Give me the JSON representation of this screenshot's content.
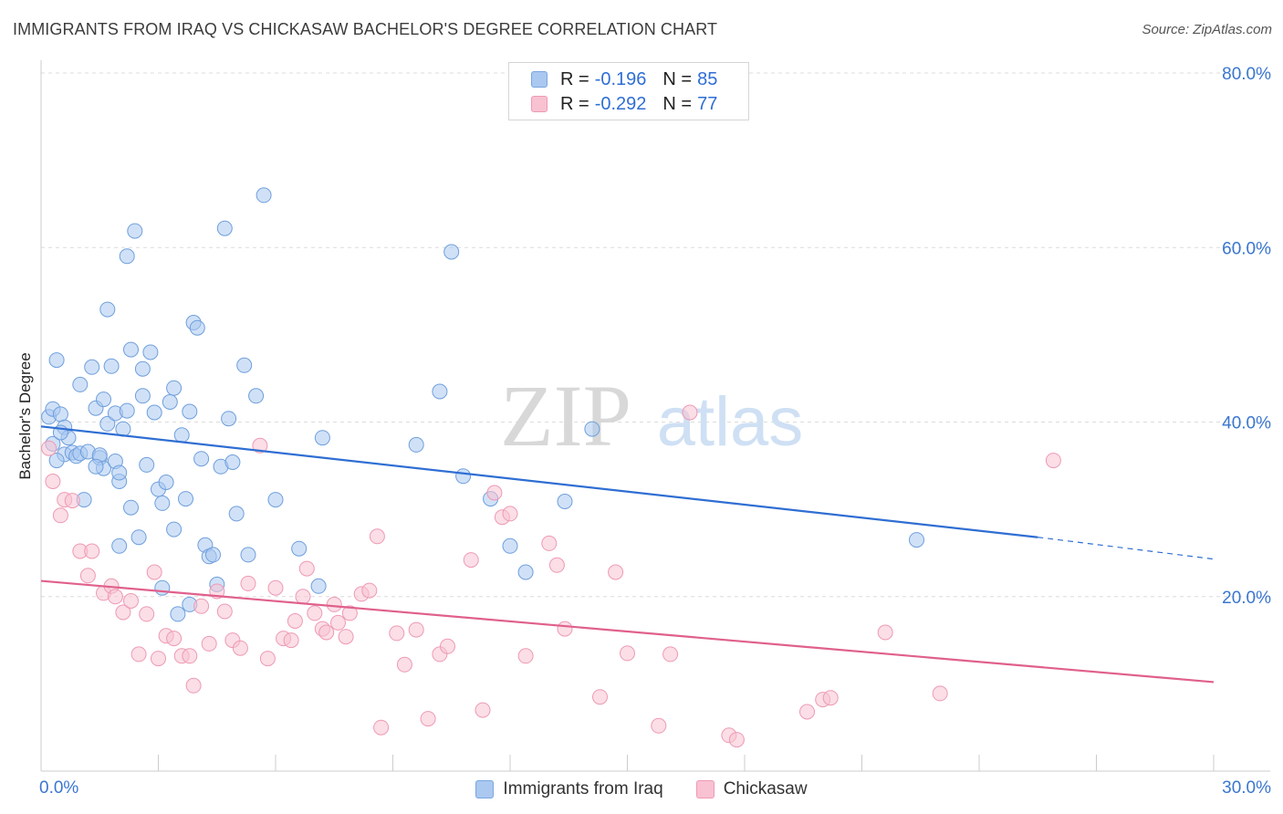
{
  "title": "IMMIGRANTS FROM IRAQ VS CHICKASAW BACHELOR'S DEGREE CORRELATION CHART",
  "source": "Source: ZipAtlas.com",
  "watermark": {
    "zip": "ZIP",
    "atlas": "atlas"
  },
  "legend": {
    "rows": [
      {
        "r_label": "R =",
        "r_value": "-0.196",
        "n_label": "N =",
        "n_value": "85",
        "color": "#aac8f0"
      },
      {
        "r_label": "R =",
        "r_value": "-0.292",
        "n_label": "N =",
        "n_value": "77",
        "color": "#f8c2d2"
      }
    ]
  },
  "chart_data": {
    "type": "scatter",
    "title": "IMMIGRANTS FROM IRAQ VS CHICKASAW BACHELOR'S DEGREE CORRELATION CHART",
    "xlabel": "",
    "ylabel": "Bachelor's Degree",
    "xlim": [
      0,
      30
    ],
    "ylim": [
      0,
      80
    ],
    "x_tick_labels": [
      "0.0%",
      "30.0%"
    ],
    "y_tick_labels": [
      "20.0%",
      "40.0%",
      "60.0%",
      "80.0%"
    ],
    "y_ticks": [
      20,
      40,
      60,
      80
    ],
    "grid": true,
    "legend_position": "top-center",
    "series": [
      {
        "name": "Immigrants from Iraq",
        "color": "#aac8f0",
        "stroke": "#6f9fdd",
        "line_color": "#2f6ed3",
        "trend": {
          "x0": 0,
          "y0": 39.5,
          "x1": 25.5,
          "y1": 26.8,
          "dash_to_x": 30,
          "dash_to_y": 24.3
        },
        "points": [
          [
            0.2,
            40.6
          ],
          [
            0.3,
            41.5
          ],
          [
            0.4,
            47.1
          ],
          [
            0.5,
            40.9
          ],
          [
            0.6,
            36.3
          ],
          [
            0.6,
            39.4
          ],
          [
            0.7,
            38.2
          ],
          [
            0.8,
            36.5
          ],
          [
            0.9,
            36.1
          ],
          [
            1.0,
            44.3
          ],
          [
            1.0,
            36.4
          ],
          [
            1.1,
            31.1
          ],
          [
            1.2,
            36.6
          ],
          [
            1.3,
            46.3
          ],
          [
            1.4,
            41.6
          ],
          [
            1.5,
            35.9
          ],
          [
            1.5,
            36.2
          ],
          [
            1.6,
            42.6
          ],
          [
            1.6,
            34.7
          ],
          [
            1.7,
            52.9
          ],
          [
            1.7,
            39.8
          ],
          [
            1.8,
            46.4
          ],
          [
            1.9,
            35.5
          ],
          [
            1.9,
            41.0
          ],
          [
            2.0,
            25.8
          ],
          [
            2.0,
            33.2
          ],
          [
            2.1,
            39.2
          ],
          [
            2.2,
            41.3
          ],
          [
            2.2,
            59.0
          ],
          [
            2.3,
            48.3
          ],
          [
            2.3,
            30.2
          ],
          [
            2.4,
            61.9
          ],
          [
            2.5,
            26.8
          ],
          [
            2.6,
            46.1
          ],
          [
            2.6,
            43.0
          ],
          [
            2.7,
            35.1
          ],
          [
            2.8,
            48.0
          ],
          [
            2.9,
            41.1
          ],
          [
            3.0,
            32.3
          ],
          [
            3.1,
            30.7
          ],
          [
            3.1,
            21.0
          ],
          [
            3.2,
            33.1
          ],
          [
            3.3,
            42.3
          ],
          [
            3.4,
            43.9
          ],
          [
            3.4,
            27.7
          ],
          [
            3.5,
            18.0
          ],
          [
            3.6,
            38.5
          ],
          [
            3.7,
            31.2
          ],
          [
            3.8,
            41.2
          ],
          [
            3.8,
            19.1
          ],
          [
            3.9,
            51.4
          ],
          [
            4.0,
            50.8
          ],
          [
            4.1,
            35.8
          ],
          [
            4.2,
            25.9
          ],
          [
            4.3,
            24.6
          ],
          [
            4.4,
            24.8
          ],
          [
            4.5,
            21.4
          ],
          [
            4.6,
            34.9
          ],
          [
            4.7,
            62.2
          ],
          [
            4.8,
            40.4
          ],
          [
            4.9,
            35.4
          ],
          [
            5.0,
            29.5
          ],
          [
            5.2,
            46.5
          ],
          [
            5.3,
            24.8
          ],
          [
            5.5,
            43.0
          ],
          [
            5.7,
            66.0
          ],
          [
            6.0,
            31.1
          ],
          [
            6.6,
            25.5
          ],
          [
            7.1,
            21.2
          ],
          [
            7.2,
            38.2
          ],
          [
            9.6,
            37.4
          ],
          [
            10.2,
            43.5
          ],
          [
            10.5,
            59.5
          ],
          [
            10.8,
            33.8
          ],
          [
            11.5,
            31.2
          ],
          [
            12.0,
            25.8
          ],
          [
            12.4,
            22.8
          ],
          [
            13.4,
            30.9
          ],
          [
            14.1,
            39.2
          ],
          [
            22.4,
            26.5
          ],
          [
            0.3,
            37.5
          ],
          [
            0.4,
            35.6
          ],
          [
            0.5,
            38.8
          ],
          [
            1.4,
            34.9
          ],
          [
            2.0,
            34.2
          ]
        ]
      },
      {
        "name": "Chickasaw",
        "color": "#f8c2d2",
        "stroke": "#ee9ab4",
        "line_color": "#e0608c",
        "trend": {
          "x0": 0,
          "y0": 21.8,
          "x1": 30,
          "y1": 10.2
        },
        "points": [
          [
            0.2,
            37.0
          ],
          [
            0.3,
            33.2
          ],
          [
            0.5,
            29.3
          ],
          [
            0.6,
            31.1
          ],
          [
            0.8,
            31.0
          ],
          [
            1.0,
            25.2
          ],
          [
            1.2,
            22.4
          ],
          [
            1.3,
            25.2
          ],
          [
            1.6,
            20.4
          ],
          [
            1.8,
            21.2
          ],
          [
            1.9,
            20.0
          ],
          [
            2.1,
            18.2
          ],
          [
            2.3,
            19.5
          ],
          [
            2.5,
            13.4
          ],
          [
            2.7,
            18.0
          ],
          [
            2.9,
            22.8
          ],
          [
            3.0,
            12.9
          ],
          [
            3.2,
            15.5
          ],
          [
            3.4,
            15.2
          ],
          [
            3.6,
            13.2
          ],
          [
            3.8,
            13.2
          ],
          [
            3.9,
            9.8
          ],
          [
            4.1,
            18.9
          ],
          [
            4.3,
            14.6
          ],
          [
            4.5,
            20.6
          ],
          [
            4.7,
            18.3
          ],
          [
            4.9,
            15.0
          ],
          [
            5.1,
            14.1
          ],
          [
            5.3,
            21.5
          ],
          [
            5.6,
            37.3
          ],
          [
            5.8,
            12.9
          ],
          [
            6.0,
            21.0
          ],
          [
            6.2,
            15.2
          ],
          [
            6.4,
            15.0
          ],
          [
            6.5,
            17.2
          ],
          [
            6.7,
            20.0
          ],
          [
            6.8,
            23.2
          ],
          [
            7.0,
            18.1
          ],
          [
            7.2,
            16.3
          ],
          [
            7.3,
            15.9
          ],
          [
            7.5,
            19.1
          ],
          [
            7.6,
            17.0
          ],
          [
            7.8,
            15.4
          ],
          [
            7.9,
            18.1
          ],
          [
            8.2,
            20.3
          ],
          [
            8.4,
            20.7
          ],
          [
            8.6,
            26.9
          ],
          [
            8.7,
            5.0
          ],
          [
            9.1,
            15.8
          ],
          [
            9.3,
            12.2
          ],
          [
            9.6,
            16.2
          ],
          [
            9.9,
            6.0
          ],
          [
            10.2,
            13.4
          ],
          [
            10.4,
            14.3
          ],
          [
            11.0,
            24.2
          ],
          [
            11.3,
            7.0
          ],
          [
            11.6,
            31.9
          ],
          [
            11.8,
            29.1
          ],
          [
            12.0,
            29.5
          ],
          [
            12.4,
            13.2
          ],
          [
            13.0,
            26.1
          ],
          [
            13.2,
            23.6
          ],
          [
            13.4,
            16.3
          ],
          [
            14.3,
            8.5
          ],
          [
            14.7,
            22.8
          ],
          [
            15.0,
            13.5
          ],
          [
            15.8,
            5.2
          ],
          [
            16.1,
            13.4
          ],
          [
            16.6,
            41.1
          ],
          [
            17.6,
            4.1
          ],
          [
            17.8,
            3.6
          ],
          [
            19.6,
            6.8
          ],
          [
            20.0,
            8.2
          ],
          [
            20.2,
            8.4
          ],
          [
            21.6,
            15.9
          ],
          [
            23.0,
            8.9
          ],
          [
            25.9,
            35.6
          ]
        ]
      }
    ]
  },
  "bottom_legend": [
    {
      "label": "Immigrants from Iraq",
      "color": "#aac8f0"
    },
    {
      "label": "Chickasaw",
      "color": "#f8c2d2"
    }
  ]
}
